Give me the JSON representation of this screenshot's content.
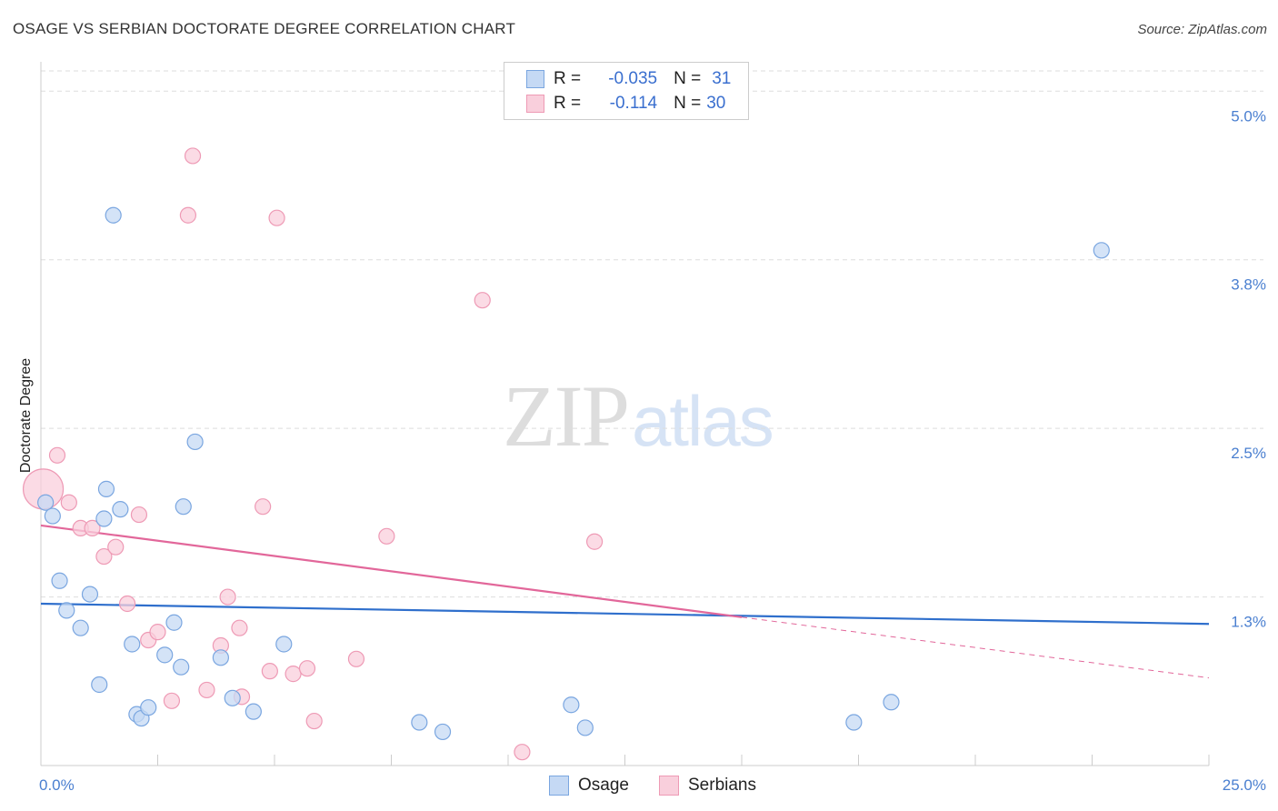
{
  "header": {
    "title": "OSAGE VS SERBIAN DOCTORATE DEGREE CORRELATION CHART",
    "source": "Source: ZipAtlas.com"
  },
  "watermark": {
    "zip": "ZIP",
    "atlas": "atlas"
  },
  "legend": {
    "osage": {
      "r_label": "R =",
      "r_value": "-0.035",
      "n_label": "N =",
      "n_value": "31"
    },
    "serbians": {
      "r_label": "R =",
      "r_value": "-0.114",
      "n_label": "N =",
      "n_value": "30"
    }
  },
  "bottom_legend": {
    "osage": "Osage",
    "serbians": "Serbians"
  },
  "colors": {
    "osage_fill": "#c5d9f4",
    "osage_stroke": "#7aa6e0",
    "osage_line": "#2f6fcc",
    "serbian_fill": "#f9cfdc",
    "serbian_stroke": "#ee9ab5",
    "serbian_line": "#e2679a",
    "grid": "#dddddd",
    "tick_text": "#4a7fd0"
  },
  "chart_data": {
    "type": "scatter",
    "title": "OSAGE VS SERBIAN DOCTORATE DEGREE CORRELATION CHART",
    "xlabel": "",
    "ylabel": "Doctorate Degree",
    "xlim": [
      0,
      25
    ],
    "ylim": [
      0,
      5.15
    ],
    "x_tick_labels": [
      {
        "value": 0,
        "label": "0.0%"
      },
      {
        "value": 25,
        "label": "25.0%"
      }
    ],
    "y_tick_labels": [
      {
        "value": 1.25,
        "label": "1.3%"
      },
      {
        "value": 2.5,
        "label": "2.5%"
      },
      {
        "value": 3.75,
        "label": "3.8%"
      },
      {
        "value": 5.0,
        "label": "5.0%"
      }
    ],
    "series": [
      {
        "name": "Osage",
        "r": -0.035,
        "n": 31,
        "trend": {
          "x0": 0,
          "y0": 1.2,
          "x1": 25,
          "y1": 1.05
        },
        "points": [
          [
            0.1,
            1.95
          ],
          [
            0.25,
            1.85
          ],
          [
            0.4,
            1.37
          ],
          [
            0.55,
            1.15
          ],
          [
            0.85,
            1.02
          ],
          [
            1.05,
            1.27
          ],
          [
            1.25,
            0.6
          ],
          [
            1.35,
            1.83
          ],
          [
            1.4,
            2.05
          ],
          [
            1.7,
            1.9
          ],
          [
            1.95,
            0.9
          ],
          [
            2.05,
            0.38
          ],
          [
            2.15,
            0.35
          ],
          [
            2.3,
            0.43
          ],
          [
            2.65,
            0.82
          ],
          [
            2.85,
            1.06
          ],
          [
            3.0,
            0.73
          ],
          [
            3.05,
            1.92
          ],
          [
            3.3,
            2.4
          ],
          [
            3.85,
            0.8
          ],
          [
            4.1,
            0.5
          ],
          [
            4.55,
            0.4
          ],
          [
            5.2,
            0.9
          ],
          [
            8.1,
            0.32
          ],
          [
            8.6,
            0.25
          ],
          [
            11.35,
            0.45
          ],
          [
            11.65,
            0.28
          ],
          [
            1.55,
            4.08
          ],
          [
            17.4,
            0.32
          ],
          [
            18.2,
            0.47
          ],
          [
            22.7,
            3.82
          ]
        ]
      },
      {
        "name": "Serbians",
        "r": -0.114,
        "n": 30,
        "trend": {
          "x0": 0,
          "y0": 1.78,
          "x1": 15,
          "y1": 1.1,
          "dashed_to_x": 25,
          "dashed_to_y": 0.65
        },
        "points": [
          [
            0.05,
            2.05
          ],
          [
            0.35,
            2.3
          ],
          [
            0.6,
            1.95
          ],
          [
            0.85,
            1.76
          ],
          [
            1.1,
            1.76
          ],
          [
            1.35,
            1.55
          ],
          [
            1.6,
            1.62
          ],
          [
            1.85,
            1.2
          ],
          [
            2.1,
            1.86
          ],
          [
            2.3,
            0.93
          ],
          [
            2.5,
            0.99
          ],
          [
            2.8,
            0.48
          ],
          [
            3.15,
            4.08
          ],
          [
            3.25,
            4.52
          ],
          [
            3.55,
            0.56
          ],
          [
            3.85,
            0.89
          ],
          [
            4.0,
            1.25
          ],
          [
            4.25,
            1.02
          ],
          [
            4.3,
            0.51
          ],
          [
            4.75,
            1.92
          ],
          [
            4.9,
            0.7
          ],
          [
            5.05,
            4.06
          ],
          [
            5.4,
            0.68
          ],
          [
            5.7,
            0.72
          ],
          [
            5.85,
            0.33
          ],
          [
            6.75,
            0.79
          ],
          [
            7.4,
            1.7
          ],
          [
            9.45,
            3.45
          ],
          [
            10.3,
            0.1
          ],
          [
            11.85,
            1.66
          ]
        ]
      }
    ]
  }
}
